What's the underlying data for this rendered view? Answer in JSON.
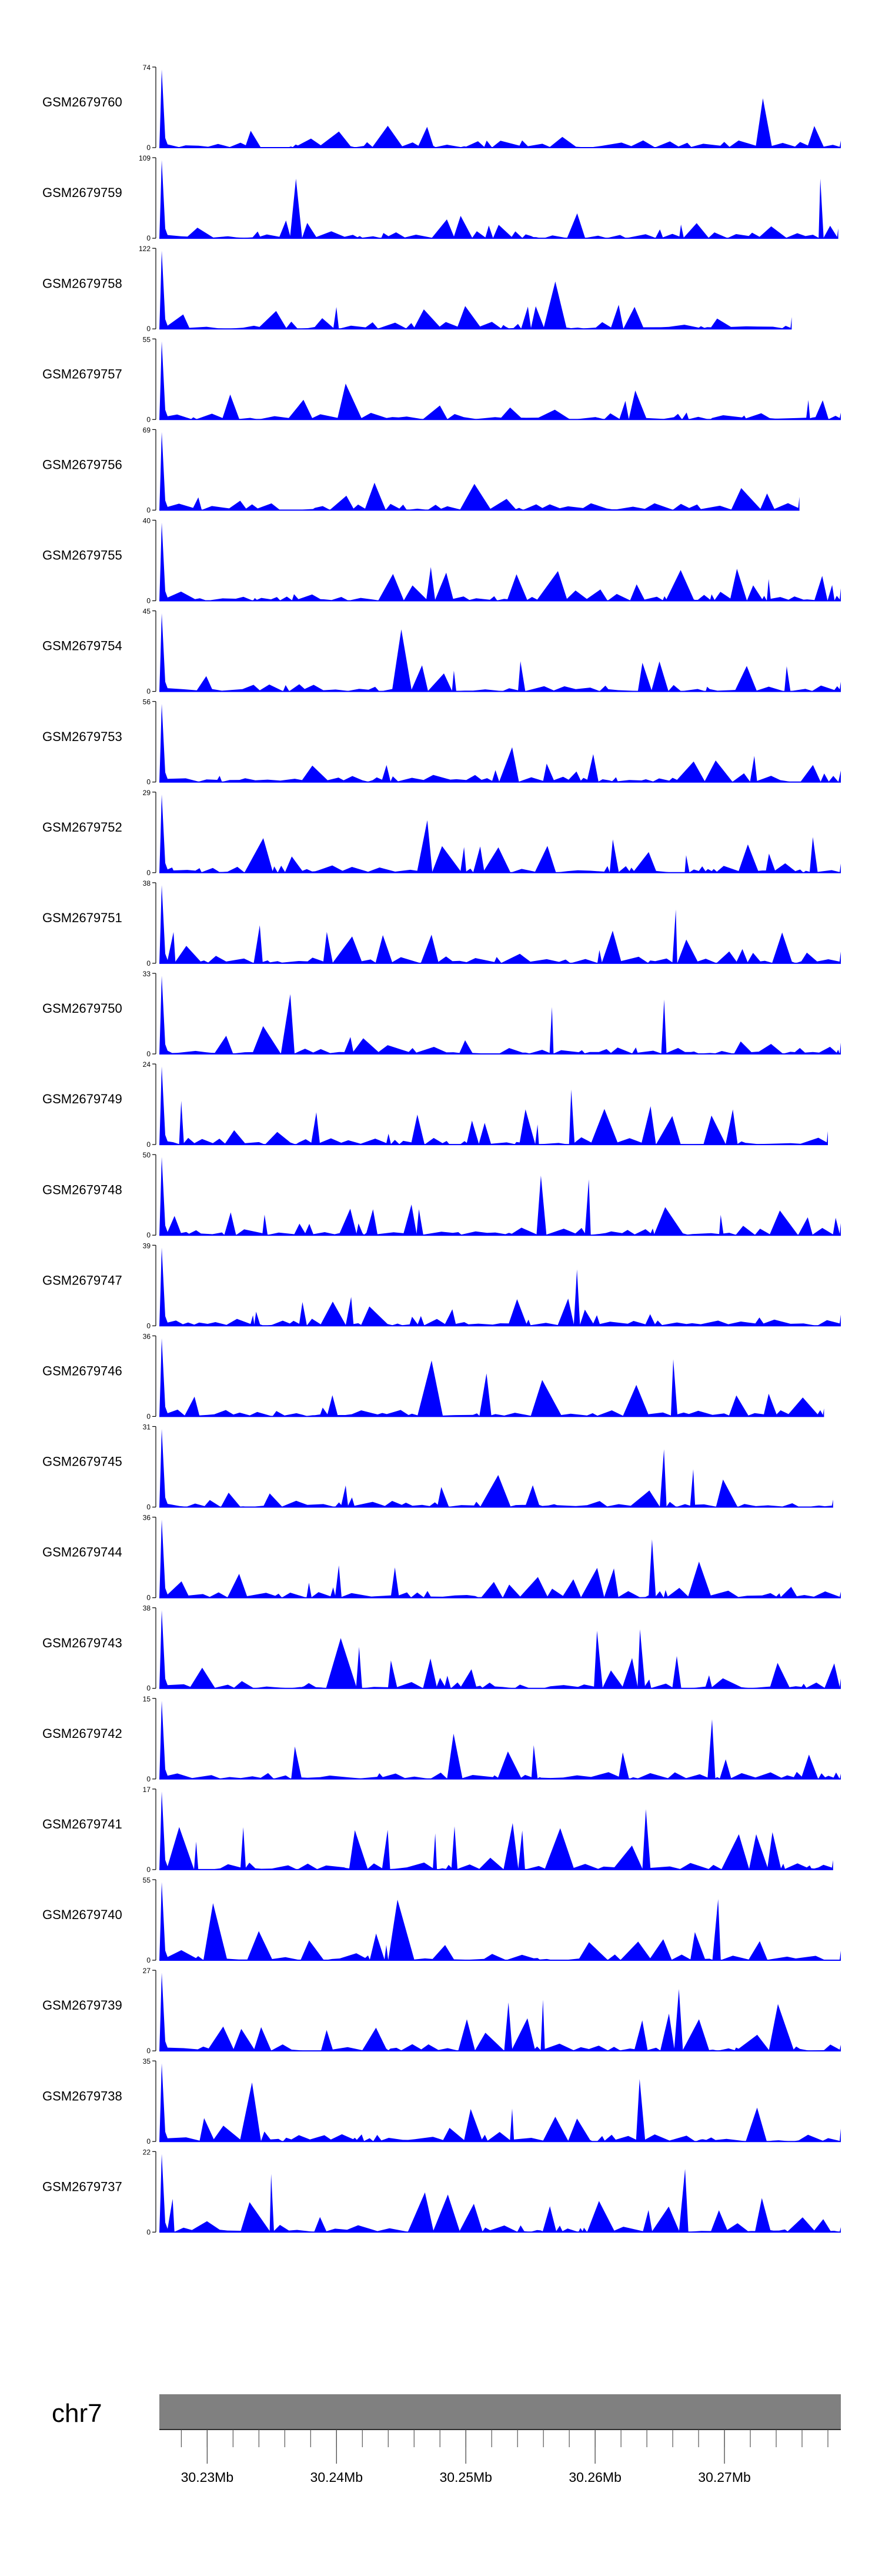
{
  "chart_data": {
    "type": "area",
    "fill_color": "#0000ff",
    "axis_color": "#000000",
    "genome_bar_color": "#808080",
    "chromosome": "chr7",
    "x_tick_labels": [
      "30.23Mb",
      "30.24Mb",
      "30.25Mb",
      "30.26Mb",
      "30.27Mb"
    ],
    "x_tick_positions_mb": [
      30.23,
      30.24,
      30.25,
      30.26,
      30.27
    ],
    "xlim_mb": [
      30.2263,
      30.279
    ],
    "tracks": [
      {
        "name": "GSM2679760",
        "ymax": 74,
        "ymax_label": "74",
        "zero_label": "0",
        "end_mb": 30.279
      },
      {
        "name": "GSM2679759",
        "ymax": 109,
        "ymax_label": "109",
        "zero_label": "0",
        "end_mb": 30.2788
      },
      {
        "name": "GSM2679758",
        "ymax": 122,
        "ymax_label": "122",
        "zero_label": "0",
        "end_mb": 30.2752
      },
      {
        "name": "GSM2679757",
        "ymax": 55,
        "ymax_label": "55",
        "zero_label": "0",
        "end_mb": 30.279
      },
      {
        "name": "GSM2679756",
        "ymax": 69,
        "ymax_label": "69",
        "zero_label": "0",
        "end_mb": 30.2758
      },
      {
        "name": "GSM2679755",
        "ymax": 40,
        "ymax_label": "40",
        "zero_label": "0",
        "end_mb": 30.279
      },
      {
        "name": "GSM2679754",
        "ymax": 45,
        "ymax_label": "45",
        "zero_label": "0",
        "end_mb": 30.279
      },
      {
        "name": "GSM2679753",
        "ymax": 56,
        "ymax_label": "56",
        "zero_label": "0",
        "end_mb": 30.279
      },
      {
        "name": "GSM2679752",
        "ymax": 29,
        "ymax_label": "29",
        "zero_label": "0",
        "end_mb": 30.279
      },
      {
        "name": "GSM2679751",
        "ymax": 38,
        "ymax_label": "38",
        "zero_label": "0",
        "end_mb": 30.279
      },
      {
        "name": "GSM2679750",
        "ymax": 33,
        "ymax_label": "33",
        "zero_label": "0",
        "end_mb": 30.279
      },
      {
        "name": "GSM2679749",
        "ymax": 24,
        "ymax_label": "24",
        "zero_label": "0",
        "end_mb": 30.278
      },
      {
        "name": "GSM2679748",
        "ymax": 50,
        "ymax_label": "50",
        "zero_label": "0",
        "end_mb": 30.279
      },
      {
        "name": "GSM2679747",
        "ymax": 39,
        "ymax_label": "39",
        "zero_label": "0",
        "end_mb": 30.279
      },
      {
        "name": "GSM2679746",
        "ymax": 36,
        "ymax_label": "36",
        "zero_label": "0",
        "end_mb": 30.2777
      },
      {
        "name": "GSM2679745",
        "ymax": 31,
        "ymax_label": "31",
        "zero_label": "0",
        "end_mb": 30.2784
      },
      {
        "name": "GSM2679744",
        "ymax": 36,
        "ymax_label": "36",
        "zero_label": "0",
        "end_mb": 30.279
      },
      {
        "name": "GSM2679743",
        "ymax": 38,
        "ymax_label": "38",
        "zero_label": "0",
        "end_mb": 30.279
      },
      {
        "name": "GSM2679742",
        "ymax": 15,
        "ymax_label": "15",
        "zero_label": "0",
        "end_mb": 30.279
      },
      {
        "name": "GSM2679741",
        "ymax": 17,
        "ymax_label": "17",
        "zero_label": "0",
        "end_mb": 30.2784
      },
      {
        "name": "GSM2679740",
        "ymax": 55,
        "ymax_label": "55",
        "zero_label": "0",
        "end_mb": 30.279
      },
      {
        "name": "GSM2679739",
        "ymax": 27,
        "ymax_label": "27",
        "zero_label": "0",
        "end_mb": 30.279
      },
      {
        "name": "GSM2679738",
        "ymax": 35,
        "ymax_label": "35",
        "zero_label": "0",
        "end_mb": 30.279
      },
      {
        "name": "GSM2679737",
        "ymax": 22,
        "ymax_label": "22",
        "zero_label": "0",
        "end_mb": 30.279
      }
    ]
  }
}
